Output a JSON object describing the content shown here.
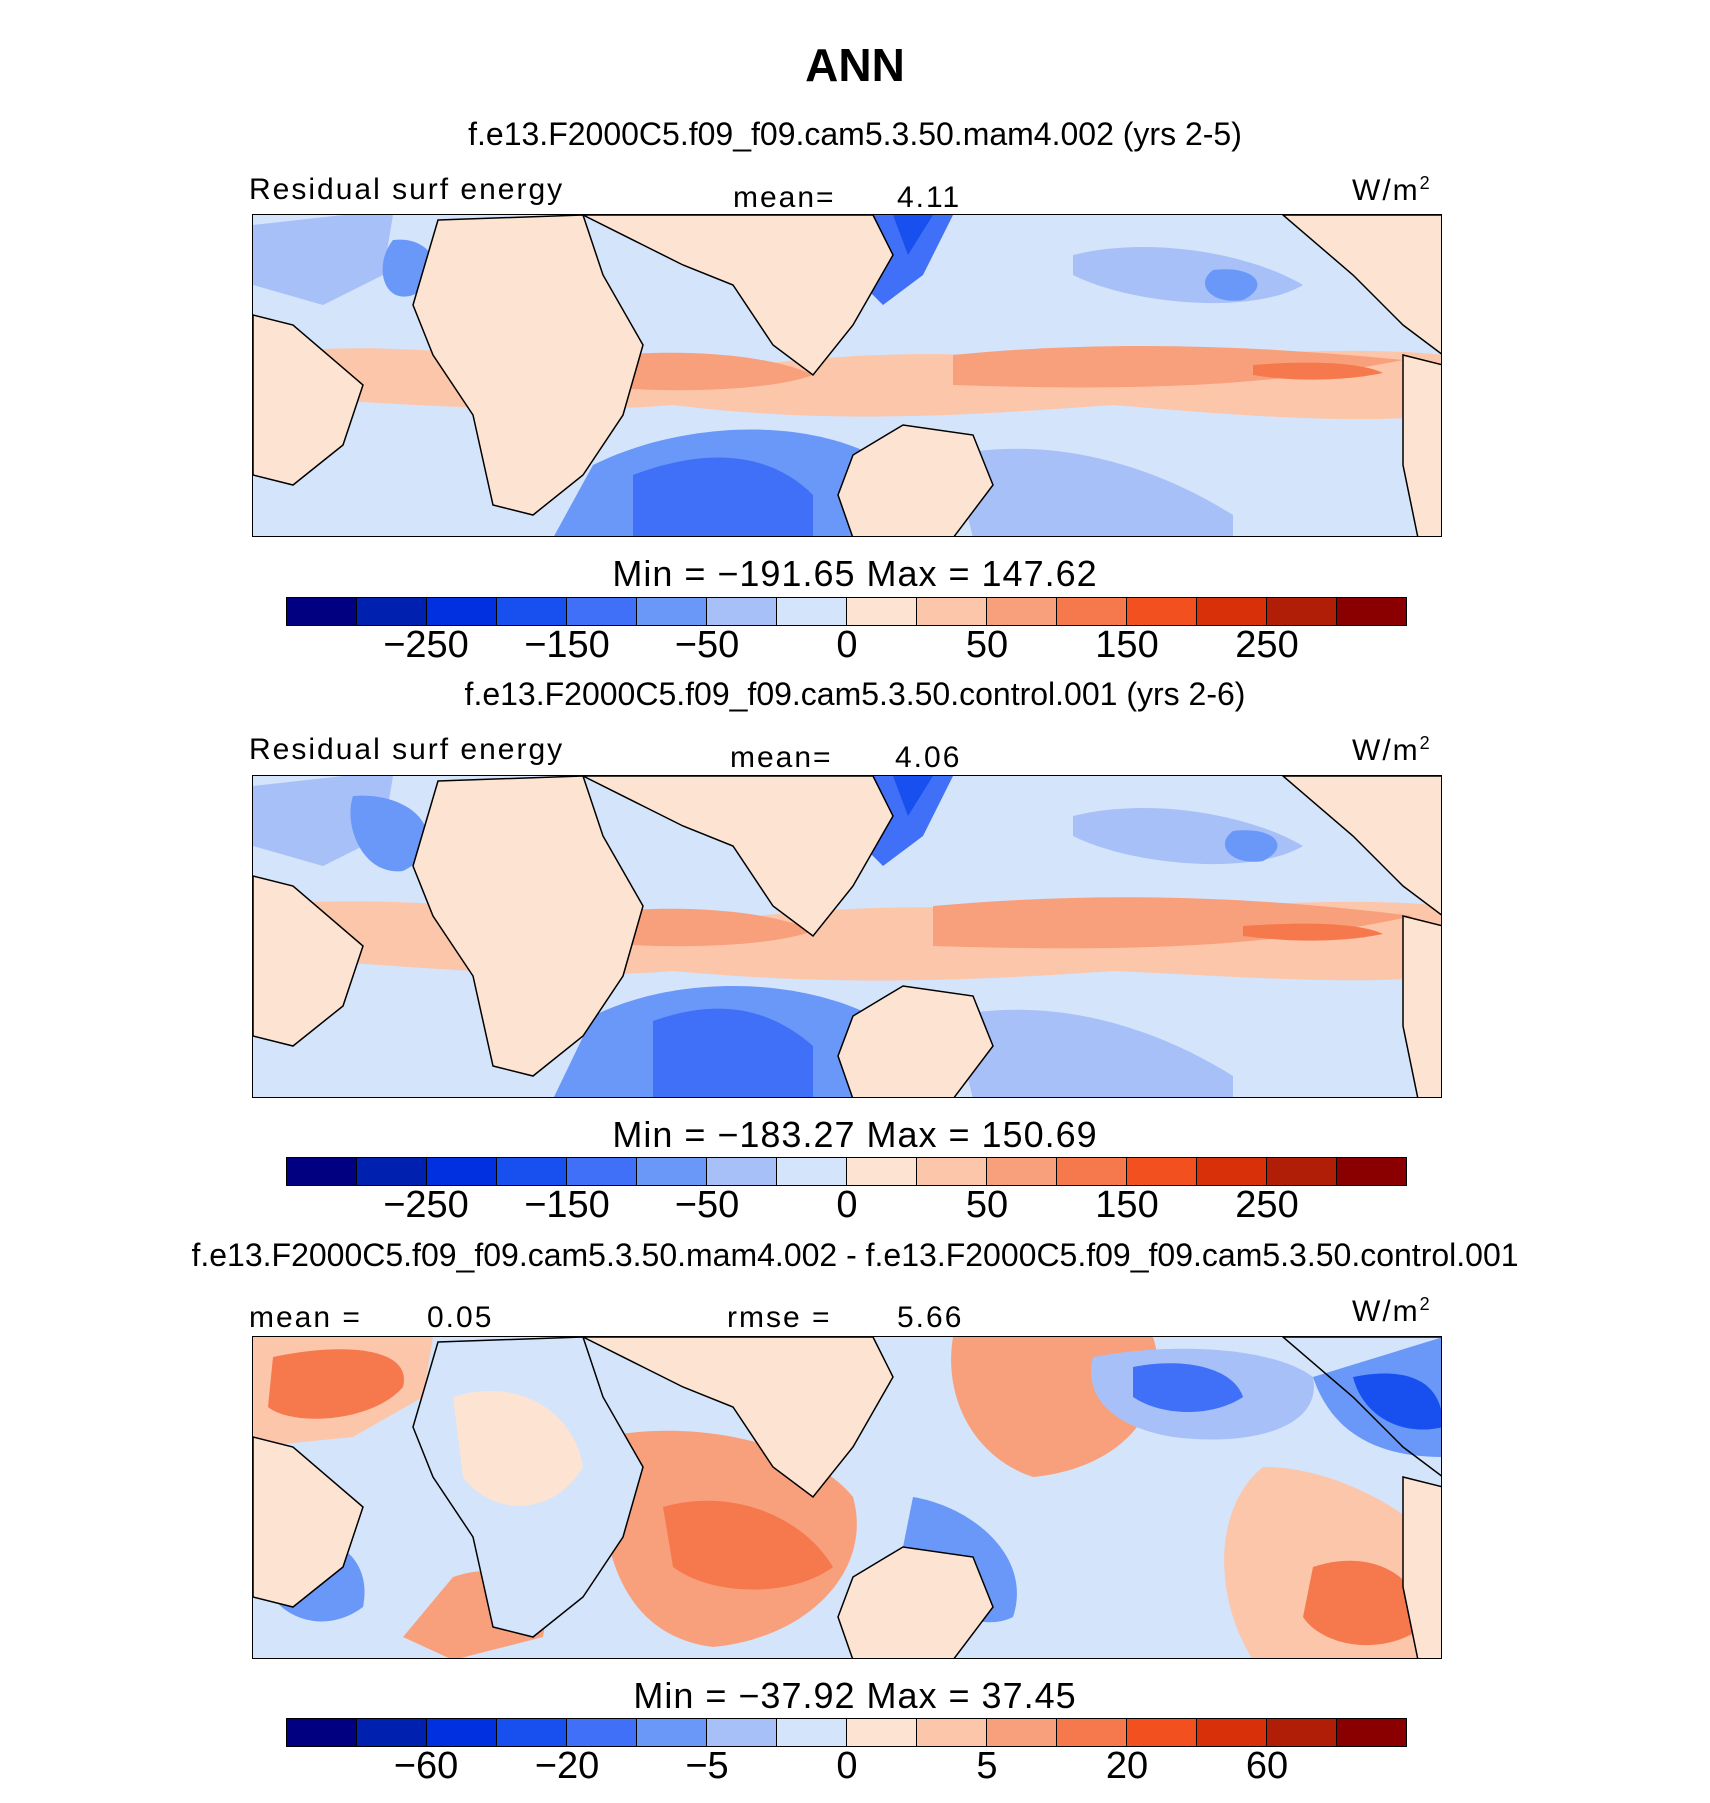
{
  "title": "ANN",
  "colors": [
    "#000080",
    "#0020b0",
    "#0030e0",
    "#1850f0",
    "#4070f8",
    "#6a98f8",
    "#a8c0f8",
    "#d4e4fb",
    "#fde4d2",
    "#fcc6ab",
    "#f8a07c",
    "#f6784d",
    "#f2501e",
    "#d83008",
    "#b01e08",
    "#8a0000"
  ],
  "coast_color": "#000000",
  "panels": [
    {
      "title": "f.e13.F2000C5.f09_f09.cam5.3.50.mam4.002 (yrs 2-5)",
      "variable": "Residual surf energy",
      "mean_label": "mean=",
      "mean_value": "4.11",
      "units": "W/m",
      "units_sup": "2",
      "minmax": "Min = −191.65 Max = 147.62",
      "ticks": [
        "−250",
        "−150",
        "−50",
        "0",
        "50",
        "150",
        "250"
      ]
    },
    {
      "title": "f.e13.F2000C5.f09_f09.cam5.3.50.control.001 (yrs 2-6)",
      "variable": "Residual surf energy",
      "mean_label": "mean=",
      "mean_value": "4.06",
      "units": "W/m",
      "units_sup": "2",
      "minmax": "Min = −183.27 Max = 150.69",
      "ticks": [
        "−250",
        "−150",
        "−50",
        "0",
        "50",
        "150",
        "250"
      ]
    },
    {
      "title": "f.e13.F2000C5.f09_f09.cam5.3.50.mam4.002 - f.e13.F2000C5.f09_f09.cam5.3.50.control.001",
      "mean_label": "mean =",
      "mean_value": "0.05",
      "rmse_label": "rmse =",
      "rmse_value": "5.66",
      "units": "W/m",
      "units_sup": "2",
      "minmax": "Min = −37.92 Max = 37.45",
      "ticks": [
        "−60",
        "−20",
        "−5",
        "0",
        "5",
        "20",
        "60"
      ]
    }
  ]
}
